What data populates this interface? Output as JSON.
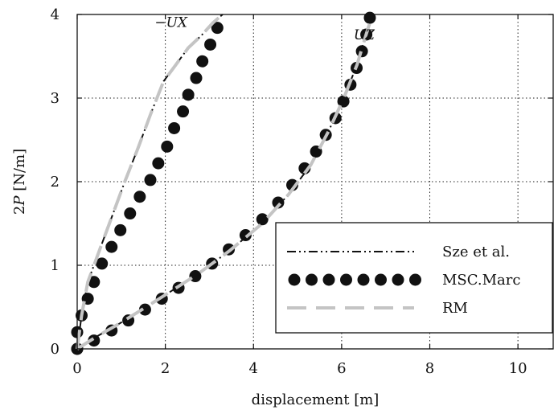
{
  "chart_data": {
    "type": "line",
    "xlabel": "displacement [m]",
    "ylabel": "2P [N/m]",
    "ylabel_parts": {
      "pre": "2",
      "var": "P",
      "unit": " [N/m]"
    },
    "xlim": [
      0,
      10.8
    ],
    "ylim": [
      0,
      4
    ],
    "xticks": [
      0,
      2,
      4,
      6,
      8,
      10
    ],
    "yticks": [
      0,
      1,
      2,
      3,
      4
    ],
    "grid": true,
    "legend_position": "lower-right",
    "annotations": [
      {
        "text": "−UX",
        "x": 2.5,
        "y": 3.85
      },
      {
        "text": "UZ",
        "x": 6.75,
        "y": 3.7
      }
    ],
    "series": [
      {
        "name": "Sze et al.",
        "style": "dash-dot-dot",
        "color": "#111111",
        "curves": [
          {
            "x": [
              0,
              0.1,
              0.24,
              0.52,
              0.8,
              1.08,
              1.38,
              1.66,
              1.96,
              2.24,
              2.52,
              2.82,
              3.08,
              3.3
            ],
            "y": [
              0,
              0.4,
              0.8,
              1.2,
              1.6,
              2.0,
              2.4,
              2.8,
              3.2,
              3.4,
              3.6,
              3.75,
              3.9,
              4.0
            ]
          },
          {
            "x": [
              0,
              0.45,
              0.95,
              1.5,
              2.1,
              2.75,
              3.45,
              4.2,
              4.8,
              5.3,
              5.7,
              6.05,
              6.35,
              6.55,
              6.7
            ],
            "y": [
              0,
              0.15,
              0.3,
              0.48,
              0.68,
              0.9,
              1.17,
              1.5,
              1.85,
              2.2,
              2.6,
              3.0,
              3.4,
              3.75,
              4.0
            ]
          }
        ]
      },
      {
        "name": "MSC.Marc",
        "style": "markers",
        "color": "#111111",
        "curves": [
          {
            "x": [
              0,
              0,
              0.1,
              0.24,
              0.38,
              0.56,
              0.78,
              0.98,
              1.2,
              1.42,
              1.66,
              1.84,
              2.04,
              2.2,
              2.4,
              2.52,
              2.7,
              2.84,
              3.02,
              3.18
            ],
            "y": [
              0,
              0.2,
              0.4,
              0.6,
              0.8,
              1.02,
              1.22,
              1.42,
              1.62,
              1.82,
              2.02,
              2.22,
              2.42,
              2.64,
              2.84,
              3.04,
              3.24,
              3.44,
              3.64,
              3.84
            ]
          },
          {
            "x": [
              0,
              0.38,
              0.78,
              1.16,
              1.54,
              1.92,
              2.3,
              2.68,
              3.06,
              3.44,
              3.82,
              4.2,
              4.56,
              4.88,
              5.16,
              5.42,
              5.64,
              5.86,
              6.04,
              6.2,
              6.34,
              6.46,
              6.56,
              6.64
            ],
            "y": [
              0,
              0.1,
              0.22,
              0.34,
              0.47,
              0.6,
              0.73,
              0.87,
              1.02,
              1.19,
              1.36,
              1.55,
              1.75,
              1.96,
              2.16,
              2.36,
              2.56,
              2.76,
              2.96,
              3.16,
              3.36,
              3.56,
              3.76,
              3.96
            ]
          }
        ]
      },
      {
        "name": "RM",
        "style": "dashed",
        "color": "#c4c4c4",
        "curves": [
          {
            "x": [
              0,
              0.1,
              0.24,
              0.52,
              0.8,
              1.08,
              1.38,
              1.66,
              1.96,
              2.24,
              2.52,
              2.82,
              3.08,
              3.3
            ],
            "y": [
              0,
              0.4,
              0.8,
              1.2,
              1.6,
              2.0,
              2.4,
              2.8,
              3.2,
              3.4,
              3.6,
              3.75,
              3.9,
              4.0
            ]
          },
          {
            "x": [
              0,
              0.45,
              0.95,
              1.5,
              2.1,
              2.75,
              3.45,
              4.2,
              4.8,
              5.3,
              5.7,
              6.05,
              6.35,
              6.55,
              6.7
            ],
            "y": [
              0,
              0.15,
              0.3,
              0.48,
              0.68,
              0.9,
              1.17,
              1.5,
              1.85,
              2.2,
              2.6,
              3.0,
              3.4,
              3.75,
              4.0
            ]
          }
        ]
      }
    ]
  }
}
